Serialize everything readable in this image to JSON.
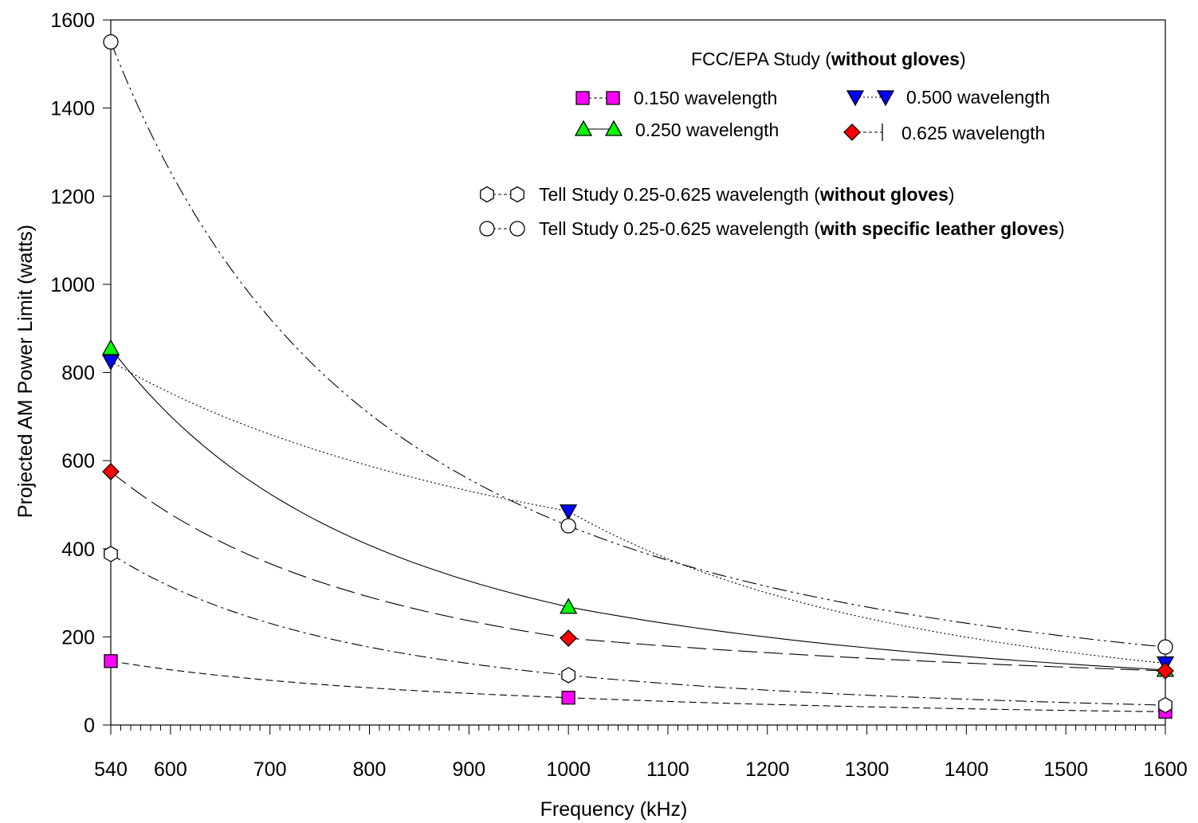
{
  "chart_data": {
    "type": "line",
    "xlabel": "Frequency (kHz)",
    "ylabel": "Projected AM Power Limit (watts)",
    "xlim": [
      540,
      1600
    ],
    "ylim": [
      0,
      1600
    ],
    "x_ticks": [
      540,
      600,
      700,
      800,
      900,
      1000,
      1100,
      1200,
      1300,
      1400,
      1500,
      1600
    ],
    "y_ticks": [
      0,
      200,
      400,
      600,
      800,
      1000,
      1200,
      1400,
      1600
    ],
    "grid": false,
    "legend_heading": {
      "prefix": "FCC/EPA Study (",
      "bold": "without gloves",
      "suffix": ")"
    },
    "legend_placement": "top-right",
    "series": [
      {
        "name": "0.150 wavelength",
        "marker": "square",
        "color": "#ff00ff",
        "line_style": "dashed-short",
        "x": [
          540,
          1000,
          1600
        ],
        "y": [
          145,
          62,
          30
        ]
      },
      {
        "name": "0.250 wavelength",
        "marker": "triangle-up",
        "color": "#00ff00",
        "line_style": "solid",
        "x": [
          540,
          1000,
          1600
        ],
        "y": [
          855,
          268,
          125
        ]
      },
      {
        "name": "0.500 wavelength",
        "marker": "triangle-down",
        "color": "#0000ff",
        "line_style": "dotted",
        "x": [
          540,
          1000,
          1600
        ],
        "y": [
          825,
          485,
          140
        ]
      },
      {
        "name": "0.625 wavelength",
        "marker": "diamond",
        "color": "#ff0000",
        "line_style": "dashed-long",
        "x": [
          540,
          1000,
          1600
        ],
        "y": [
          575,
          197,
          123
        ]
      },
      {
        "name_prefix": "Tell Study 0.25-0.625  wavelength (",
        "name_bold": "without gloves",
        "name_suffix": ")",
        "marker": "hexagon",
        "color": "#ffffff",
        "line_style": "dash-dot",
        "x": [
          540,
          1000,
          1600
        ],
        "y": [
          388,
          113,
          45
        ]
      },
      {
        "name_prefix": "Tell Study 0.25-0.625 wavelength (",
        "name_bold": "with specific leather gloves",
        "name_suffix": ")",
        "marker": "circle",
        "color": "#ffffff",
        "line_style": "dash-dot-dot",
        "x": [
          540,
          1000,
          1600
        ],
        "y": [
          1550,
          452,
          177
        ]
      }
    ]
  }
}
